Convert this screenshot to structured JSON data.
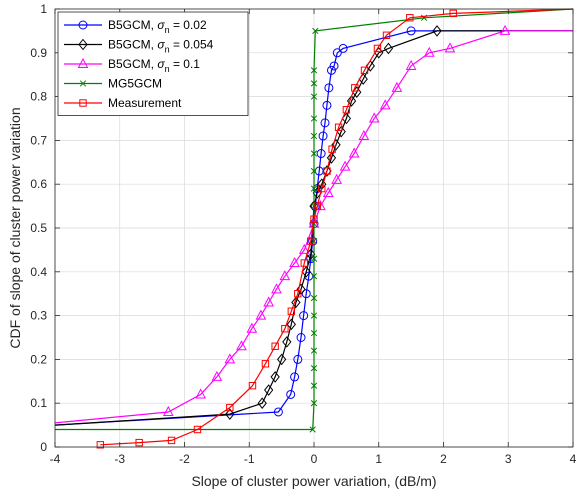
{
  "chart_data": {
    "type": "line",
    "title": "",
    "xlabel": "Slope of cluster power variation, (dB/m)",
    "ylabel": "CDF of slope of cluster power variation",
    "xlim": [
      -4,
      4
    ],
    "ylim": [
      0,
      1
    ],
    "xticks": [
      "-4",
      "-3",
      "-2",
      "-1",
      "0",
      "1",
      "2",
      "3",
      "4"
    ],
    "yticks": [
      "0",
      "0.1",
      "0.2",
      "0.3",
      "0.4",
      "0.5",
      "0.6",
      "0.7",
      "0.8",
      "0.9",
      "1"
    ],
    "grid": true,
    "legend_position": "top-left",
    "series": [
      {
        "name": "B5GCM, σn = 0.02",
        "legend_main": "B5GCM, σ",
        "legend_sub": "n",
        "legend_tail": " = 0.02",
        "color": "#0000ff",
        "marker": "circle",
        "x": [
          -4,
          -0.55,
          -0.36,
          -0.3,
          -0.25,
          -0.2,
          -0.16,
          -0.12,
          -0.08,
          -0.05,
          -0.02,
          0,
          0.02,
          0.05,
          0.08,
          0.11,
          0.14,
          0.17,
          0.2,
          0.23,
          0.27,
          0.31,
          0.36,
          0.45,
          1.5,
          4
        ],
        "y": [
          0.05,
          0.08,
          0.12,
          0.16,
          0.2,
          0.25,
          0.3,
          0.35,
          0.39,
          0.43,
          0.47,
          0.51,
          0.55,
          0.59,
          0.63,
          0.67,
          0.71,
          0.74,
          0.78,
          0.82,
          0.86,
          0.87,
          0.9,
          0.91,
          0.95,
          0.95
        ]
      },
      {
        "name": "B5GCM, σn = 0.054",
        "legend_main": "B5GCM, σ",
        "legend_sub": "n",
        "legend_tail": " = 0.054",
        "color": "#000000",
        "marker": "diamond",
        "x": [
          -4,
          -1.3,
          -0.8,
          -0.7,
          -0.6,
          -0.5,
          -0.42,
          -0.35,
          -0.28,
          -0.2,
          -0.12,
          -0.05,
          0,
          0.05,
          0.12,
          0.2,
          0.27,
          0.34,
          0.42,
          0.5,
          0.58,
          0.66,
          0.76,
          0.87,
          1.0,
          1.15,
          1.9,
          4
        ],
        "y": [
          0.05,
          0.075,
          0.1,
          0.13,
          0.16,
          0.2,
          0.24,
          0.28,
          0.33,
          0.36,
          0.4,
          0.44,
          0.55,
          0.58,
          0.6,
          0.63,
          0.66,
          0.69,
          0.72,
          0.75,
          0.79,
          0.81,
          0.84,
          0.87,
          0.9,
          0.91,
          0.95,
          0.95
        ]
      },
      {
        "name": "B5GCM, σn = 0.1",
        "legend_main": "B5GCM, σ",
        "legend_sub": "n",
        "legend_tail": " = 0.1",
        "color": "#ff00ff",
        "marker": "triangle",
        "x": [
          -4,
          -2.25,
          -1.75,
          -1.5,
          -1.3,
          -1.12,
          -0.96,
          -0.82,
          -0.7,
          -0.58,
          -0.45,
          -0.3,
          -0.15,
          0,
          0.1,
          0.22,
          0.35,
          0.48,
          0.62,
          0.77,
          0.93,
          1.1,
          1.28,
          1.5,
          1.78,
          2.1,
          2.95,
          4
        ],
        "y": [
          0.055,
          0.08,
          0.12,
          0.16,
          0.2,
          0.23,
          0.27,
          0.3,
          0.33,
          0.36,
          0.39,
          0.42,
          0.45,
          0.51,
          0.55,
          0.58,
          0.61,
          0.64,
          0.67,
          0.71,
          0.75,
          0.78,
          0.82,
          0.87,
          0.9,
          0.91,
          0.95,
          0.95
        ]
      },
      {
        "name": "MG5GCM",
        "color": "#008000",
        "marker": "x",
        "x": [
          -4,
          -0.02,
          0,
          0,
          0,
          0,
          0,
          0,
          0,
          0,
          0,
          0,
          0,
          0,
          0,
          0,
          0,
          0,
          0,
          0,
          0,
          0,
          0.02,
          1.7,
          4
        ],
        "y": [
          0.04,
          0.04,
          0.1,
          0.14,
          0.18,
          0.22,
          0.26,
          0.3,
          0.34,
          0.39,
          0.43,
          0.47,
          0.51,
          0.55,
          0.59,
          0.63,
          0.67,
          0.71,
          0.75,
          0.8,
          0.83,
          0.86,
          0.95,
          0.98,
          1.0
        ]
      },
      {
        "name": "Measurement",
        "color": "#ff0000",
        "marker": "square",
        "x": [
          -3.3,
          -2.7,
          -2.2,
          -1.8,
          -1.3,
          -0.95,
          -0.75,
          -0.6,
          -0.45,
          -0.35,
          -0.25,
          -0.15,
          -0.05,
          0,
          0.05,
          0.12,
          0.2,
          0.28,
          0.38,
          0.5,
          0.63,
          0.78,
          0.98,
          1.12,
          1.48,
          2.15,
          4
        ],
        "y": [
          0.005,
          0.01,
          0.015,
          0.04,
          0.09,
          0.14,
          0.19,
          0.23,
          0.27,
          0.31,
          0.35,
          0.42,
          0.47,
          0.52,
          0.55,
          0.59,
          0.63,
          0.68,
          0.73,
          0.77,
          0.82,
          0.86,
          0.91,
          0.94,
          0.98,
          0.99,
          1.0
        ]
      }
    ]
  }
}
